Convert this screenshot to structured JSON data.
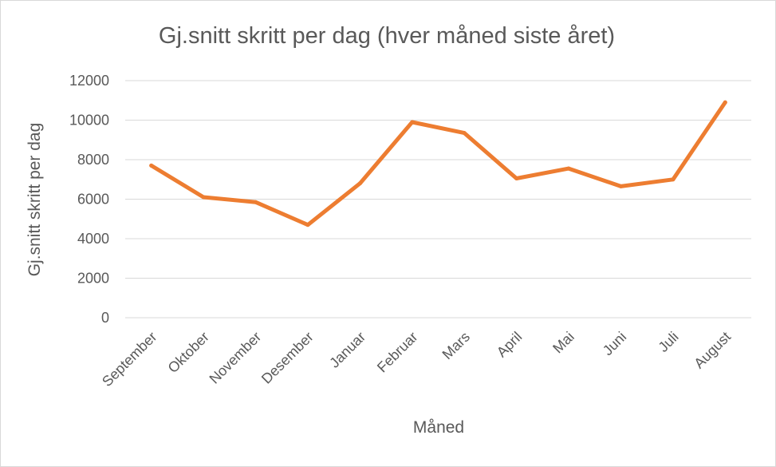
{
  "chart_data": {
    "type": "line",
    "title": "Gj.snitt skritt per dag (hver måned siste året)",
    "xlabel": "Måned",
    "ylabel": "Gj.snitt skritt per dag",
    "categories": [
      "September",
      "Oktober",
      "November",
      "Desember",
      "Januar",
      "Februar",
      "Mars",
      "April",
      "Mai",
      "Juni",
      "Juli",
      "August"
    ],
    "series": [
      {
        "values": [
          7700,
          6100,
          5850,
          4700,
          6800,
          9900,
          9350,
          7050,
          7550,
          6650,
          7000,
          10900
        ],
        "color": "#ED7D31"
      }
    ],
    "ylim": [
      0,
      12000
    ],
    "yticks": [
      0,
      2000,
      4000,
      6000,
      8000,
      10000,
      12000
    ],
    "grid": true,
    "legend": "none"
  }
}
